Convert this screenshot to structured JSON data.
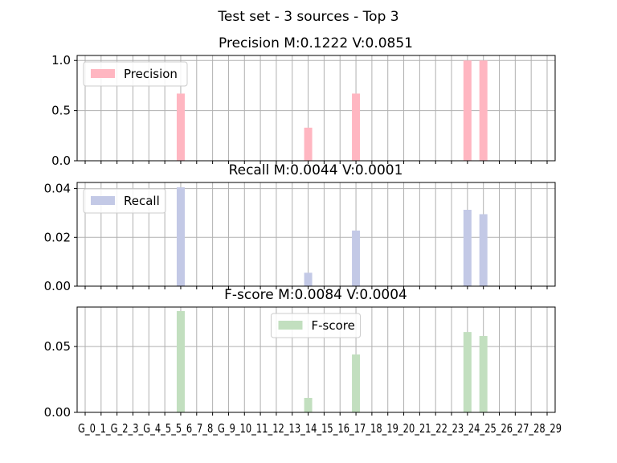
{
  "suptitle": "Test set - 3 sources - Top 3",
  "categories_label": "G_0_1_G_2_3_G_4_5_5_6_7_8_G_9_10_11_12_13_14_15_16_17_18_19_20_21_22_23_24_25_26_27_28_29",
  "chart_data": [
    {
      "type": "bar",
      "title": "Precision M:0.1222 V:0.0851",
      "legend": "Precision",
      "legend_position": "top-left",
      "color": "#ffb6c1",
      "ylim": [
        0,
        1.05
      ],
      "yticks": [
        "0.0",
        "0.5",
        "1.0"
      ],
      "grid": true,
      "bars": [
        {
          "x_index": 6,
          "value": 0.67
        },
        {
          "x_index": 14,
          "value": 0.33
        },
        {
          "x_index": 17,
          "value": 0.67
        },
        {
          "x_index": 24,
          "value": 1.0
        },
        {
          "x_index": 25,
          "value": 1.0
        }
      ]
    },
    {
      "type": "bar",
      "title": "Recall M:0.0044 V:0.0001",
      "legend": "Recall",
      "legend_position": "top-left",
      "color": "#c3c9e6",
      "ylim": [
        0,
        0.0425
      ],
      "yticks": [
        "0.00",
        "0.02",
        "0.04"
      ],
      "grid": true,
      "bars": [
        {
          "x_index": 6,
          "value": 0.0405
        },
        {
          "x_index": 14,
          "value": 0.0055
        },
        {
          "x_index": 17,
          "value": 0.0228
        },
        {
          "x_index": 24,
          "value": 0.0313
        },
        {
          "x_index": 25,
          "value": 0.0295
        }
      ]
    },
    {
      "type": "bar",
      "title": "F-score M:0.0084 V:0.0004",
      "legend": "F-score",
      "legend_position": "top-center",
      "color": "#c2dfbf",
      "ylim": [
        0,
        0.08
      ],
      "yticks": [
        "0.00",
        "0.05"
      ],
      "grid": true,
      "bars": [
        {
          "x_index": 6,
          "value": 0.077
        },
        {
          "x_index": 14,
          "value": 0.011
        },
        {
          "x_index": 17,
          "value": 0.044
        },
        {
          "x_index": 24,
          "value": 0.061
        },
        {
          "x_index": 25,
          "value": 0.058
        }
      ]
    }
  ]
}
